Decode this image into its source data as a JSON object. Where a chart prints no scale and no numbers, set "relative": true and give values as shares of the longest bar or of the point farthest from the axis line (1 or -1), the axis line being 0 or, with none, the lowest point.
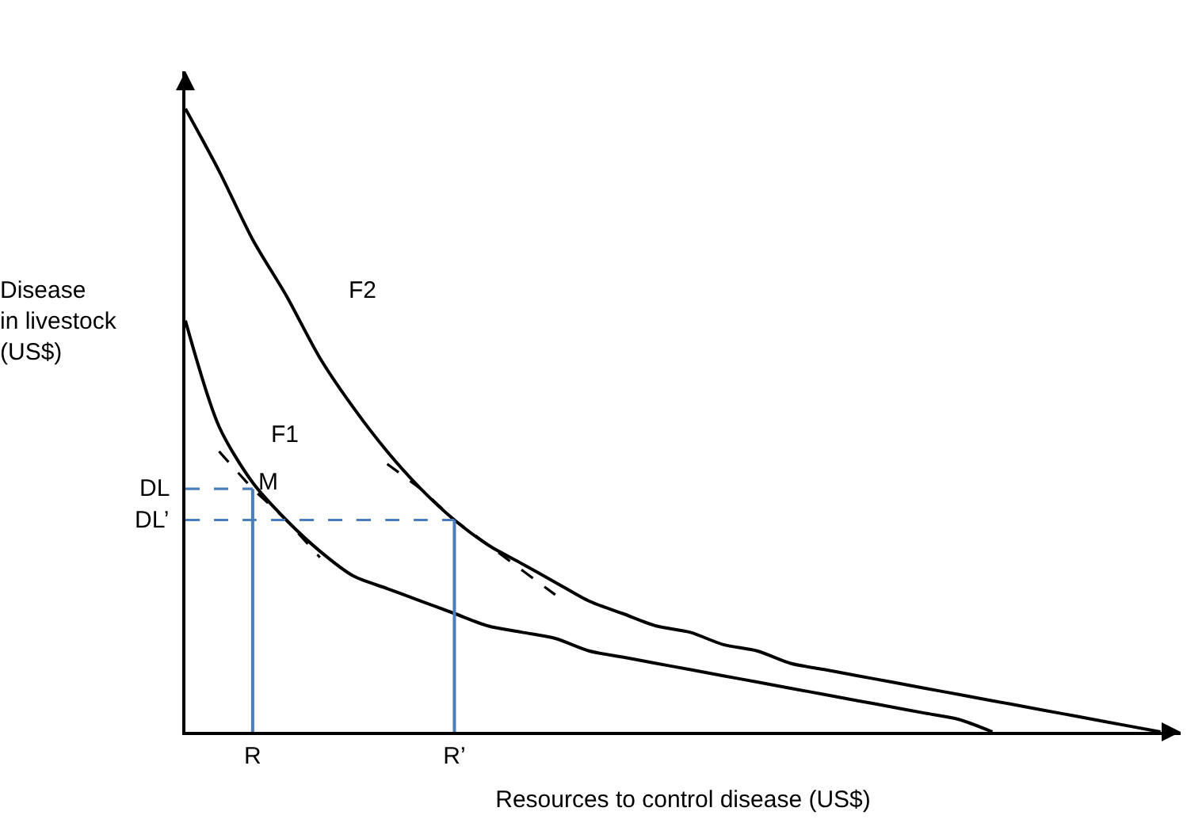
{
  "chart_data": {
    "type": "line",
    "relative": true,
    "xlabel": "Resources to control disease (US$)",
    "ylabel": "Disease\nin livestock\n(US$)",
    "categories": [
      null,
      null,
      "R",
      null,
      null,
      null,
      null,
      null,
      "R’",
      null,
      null,
      null,
      null,
      null,
      null,
      null,
      null,
      null,
      null,
      null,
      null,
      null,
      null,
      null,
      null,
      null,
      null,
      null,
      null,
      null
    ],
    "series": [
      {
        "name": "F1",
        "color": "#000000",
        "values": [
          0.66,
          0.49,
          0.4,
          0.34,
          0.29,
          0.25,
          0.23,
          0.21,
          0.19,
          0.17,
          0.16,
          0.15,
          0.13,
          0.12,
          0.11,
          0.1,
          0.09,
          0.08,
          0.07,
          0.06,
          0.05,
          0.04,
          0.03,
          0.02,
          0,
          null,
          null,
          null,
          null,
          null
        ]
      },
      {
        "name": "F2",
        "color": "#000000",
        "values": [
          1.0,
          0.9,
          0.79,
          0.7,
          0.6,
          0.52,
          0.45,
          0.39,
          0.34,
          0.3,
          0.27,
          0.24,
          0.21,
          0.19,
          0.17,
          0.16,
          0.14,
          0.13,
          0.11,
          0.1,
          0.09,
          0.08,
          0.07,
          0.06,
          0.05,
          0.04,
          0.03,
          0.02,
          0.01,
          0
        ]
      },
      {
        "color": "#000000",
        "line_style": "dashed",
        "values": [
          null,
          0.45,
          0.39,
          0.34,
          0.28,
          null,
          null,
          null,
          null,
          null,
          null,
          null,
          null,
          null,
          null,
          null,
          null,
          null,
          null,
          null,
          null,
          null,
          null,
          null,
          null,
          null,
          null,
          null,
          null,
          null
        ]
      },
      {
        "color": "#000000",
        "line_style": "dashed",
        "values": [
          null,
          null,
          null,
          null,
          null,
          null,
          0.43,
          0.39,
          0.34,
          0.3,
          0.26,
          0.22,
          null,
          null,
          null,
          null,
          null,
          null,
          null,
          null,
          null,
          null,
          null,
          null,
          null,
          null,
          null,
          null,
          null,
          null
        ]
      },
      {
        "name": "DL",
        "color": "#4a7ebb",
        "line_style": "dashed",
        "values": [
          0.39,
          0.39,
          0.39,
          null,
          null,
          null,
          null,
          null,
          null,
          null,
          null,
          null,
          null,
          null,
          null,
          null,
          null,
          null,
          null,
          null,
          null,
          null,
          null,
          null,
          null,
          null,
          null,
          null,
          null,
          null
        ]
      },
      {
        "color": "#4a7ebb",
        "line_style": "solid",
        "x": [
          "R",
          "R"
        ],
        "values": [
          0,
          0.39
        ]
      },
      {
        "name": "DL’",
        "color": "#4a7ebb",
        "line_style": "dashed",
        "values": [
          0.34,
          0.34,
          0.34,
          0.34,
          0.34,
          0.34,
          0.34,
          0.34,
          0.34,
          null,
          null,
          null,
          null,
          null,
          null,
          null,
          null,
          null,
          null,
          null,
          null,
          null,
          null,
          null,
          null,
          null,
          null,
          null,
          null,
          null
        ]
      },
      {
        "color": "#4a7ebb",
        "line_style": "solid",
        "x": [
          "R’",
          "R’"
        ],
        "values": [
          0,
          0.34
        ]
      }
    ],
    "annotations": [
      {
        "text": "M",
        "x": "R",
        "y": 0.39
      }
    ]
  }
}
